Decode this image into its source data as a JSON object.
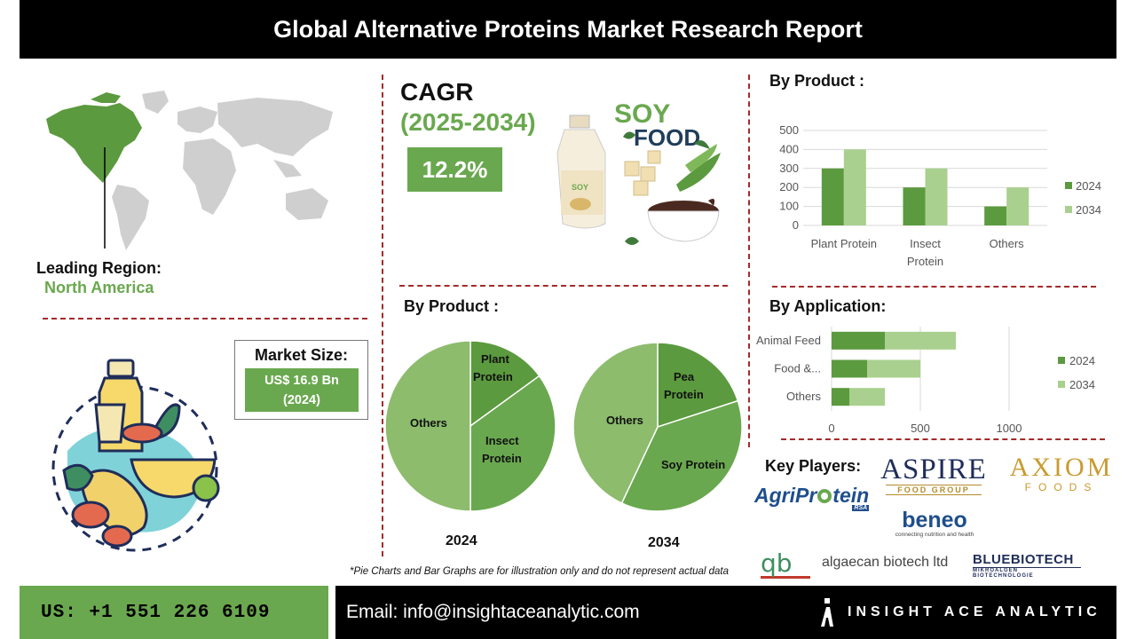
{
  "header": {
    "title": "Global Alternative Proteins Market Research Report"
  },
  "region": {
    "label": "Leading Region:",
    "value": "North America"
  },
  "cagr": {
    "label": "CAGR",
    "period": "(2025-2034)",
    "value": "12.2%"
  },
  "soy_image": {
    "line1": "SOY",
    "line2": "FOOD",
    "bottle_label": "SOY"
  },
  "market_size": {
    "label": "Market Size:",
    "value_line1": "US$ 16.9 Bn",
    "value_line2": "(2024)"
  },
  "pies_section": {
    "title": "By Product :"
  },
  "pie_2024": {
    "year": "2024",
    "labels": [
      "Plant Protein",
      "Insect Protein",
      "Others"
    ]
  },
  "pie_2034": {
    "year": "2034",
    "labels": [
      "Pea Protein",
      "Soy Protein",
      "Others"
    ]
  },
  "bar_section": {
    "title": "By Product :"
  },
  "application_section": {
    "title": "By Application:"
  },
  "key_players": {
    "title": "Key Players:",
    "logos": {
      "aspire": "ASPIRE",
      "aspire_sub": "FOOD GROUP",
      "axiom": "AXIOM",
      "axiom_sub": "FOODS",
      "agriprotein_a": "AgriPr",
      "agriprotein_b": "tein",
      "agriprotein_sub": "RSA",
      "beneo": "beneo",
      "beneo_sub": "connecting nutrition and health",
      "algaecan_mark": "qb",
      "algaecan": "algaecan biotech ltd",
      "bluebiotech": "BLUEBIOTECH",
      "bluebiotech_sub": "MIKROALGEN BIOTECHNOLOGIE"
    }
  },
  "disclaimer": "*Pie Charts and Bar Graphs are for illustration only and do not represent actual data",
  "footer": {
    "phone": "US: +1 551 226 6109",
    "email": "Email: info@insightaceanalytic.com",
    "brand": "INSIGHT ACE ANALYTIC"
  },
  "colors": {
    "dark_green": "#5b9a3e",
    "light_green": "#a9d08e",
    "mid_green": "#8cbc6c",
    "accent_green": "#6aa84f",
    "divider": "#a52a2a"
  },
  "chart_data": [
    {
      "type": "pie",
      "title": "2024",
      "categories": [
        "Plant Protein",
        "Insect Protein",
        "Others"
      ],
      "values": [
        15,
        35,
        50
      ]
    },
    {
      "type": "pie",
      "title": "2034",
      "categories": [
        "Pea Protein",
        "Soy Protein",
        "Others"
      ],
      "values": [
        20,
        37,
        43
      ]
    },
    {
      "type": "bar",
      "title": "By Product :",
      "categories": [
        "Plant Protein",
        "Insect Protein",
        "Others"
      ],
      "category_lines": [
        [
          "Plant Protein"
        ],
        [
          "Insect",
          "Protein"
        ],
        [
          "Others"
        ]
      ],
      "series": [
        {
          "name": "2024",
          "values": [
            300,
            200,
            100
          ]
        },
        {
          "name": "2034",
          "values": [
            400,
            300,
            200
          ]
        }
      ],
      "yticks": [
        "0",
        "100",
        "200",
        "300",
        "400",
        "500"
      ],
      "ylim": [
        0,
        500
      ],
      "grid": true,
      "legend": "right"
    },
    {
      "type": "bar",
      "orientation": "horizontal",
      "stacked": true,
      "title": "By Application:",
      "categories": [
        "Animal Feed",
        "Food &...",
        "Others"
      ],
      "series": [
        {
          "name": "2024",
          "values": [
            300,
            200,
            100
          ]
        },
        {
          "name": "2034",
          "values": [
            400,
            300,
            200
          ]
        }
      ],
      "xticks": [
        "0",
        "500",
        "1000"
      ],
      "xlim": [
        0,
        1000
      ],
      "grid": true,
      "legend": "right"
    }
  ]
}
